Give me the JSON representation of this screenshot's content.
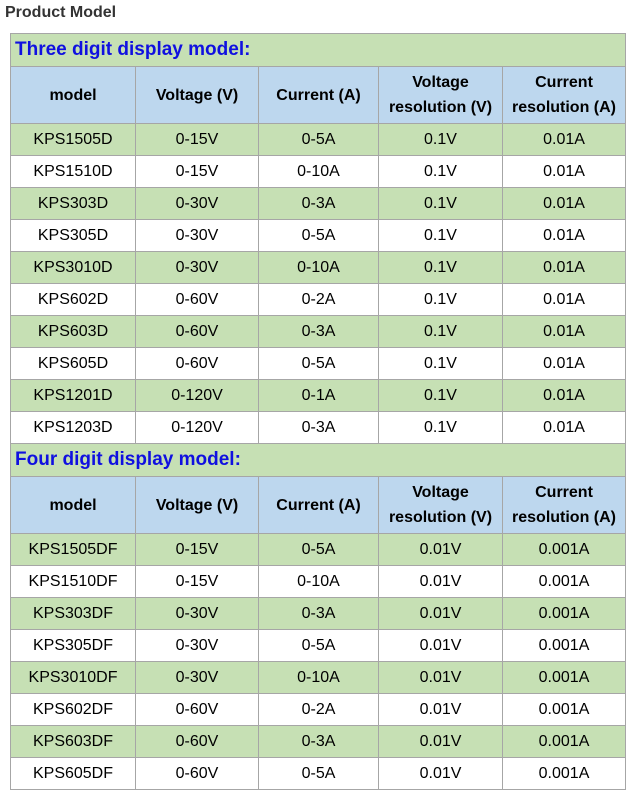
{
  "title": "Product Model",
  "sections": [
    {
      "heading": "Three digit display model:",
      "columns": [
        "model",
        "Voltage (V)",
        "Current (A)",
        "Voltage resolution (V)",
        "Current resolution (A)"
      ],
      "rows": [
        [
          "KPS1505D",
          "0-15V",
          "0-5A",
          "0.1V",
          "0.01A"
        ],
        [
          "KPS1510D",
          "0-15V",
          "0-10A",
          "0.1V",
          "0.01A"
        ],
        [
          "KPS303D",
          "0-30V",
          "0-3A",
          "0.1V",
          "0.01A"
        ],
        [
          "KPS305D",
          "0-30V",
          "0-5A",
          "0.1V",
          "0.01A"
        ],
        [
          "KPS3010D",
          "0-30V",
          "0-10A",
          "0.1V",
          "0.01A"
        ],
        [
          "KPS602D",
          "0-60V",
          "0-2A",
          "0.1V",
          "0.01A"
        ],
        [
          "KPS603D",
          "0-60V",
          "0-3A",
          "0.1V",
          "0.01A"
        ],
        [
          "KPS605D",
          "0-60V",
          "0-5A",
          "0.1V",
          "0.01A"
        ],
        [
          "KPS1201D",
          "0-120V",
          "0-1A",
          "0.1V",
          "0.01A"
        ],
        [
          "KPS1203D",
          "0-120V",
          "0-3A",
          "0.1V",
          "0.01A"
        ]
      ]
    },
    {
      "heading": "Four digit display model:",
      "columns": [
        "model",
        "Voltage (V)",
        "Current (A)",
        "Voltage resolution (V)",
        "Current resolution (A)"
      ],
      "rows": [
        [
          "KPS1505DF",
          "0-15V",
          "0-5A",
          "0.01V",
          "0.001A"
        ],
        [
          "KPS1510DF",
          "0-15V",
          "0-10A",
          "0.01V",
          "0.001A"
        ],
        [
          "KPS303DF",
          "0-30V",
          "0-3A",
          "0.01V",
          "0.001A"
        ],
        [
          "KPS305DF",
          "0-30V",
          "0-5A",
          "0.01V",
          "0.001A"
        ],
        [
          "KPS3010DF",
          "0-30V",
          "0-10A",
          "0.01V",
          "0.001A"
        ],
        [
          "KPS602DF",
          "0-60V",
          "0-2A",
          "0.01V",
          "0.001A"
        ],
        [
          "KPS603DF",
          "0-60V",
          "0-3A",
          "0.01V",
          "0.001A"
        ],
        [
          "KPS605DF",
          "0-60V",
          "0-5A",
          "0.01V",
          "0.001A"
        ]
      ]
    }
  ]
}
